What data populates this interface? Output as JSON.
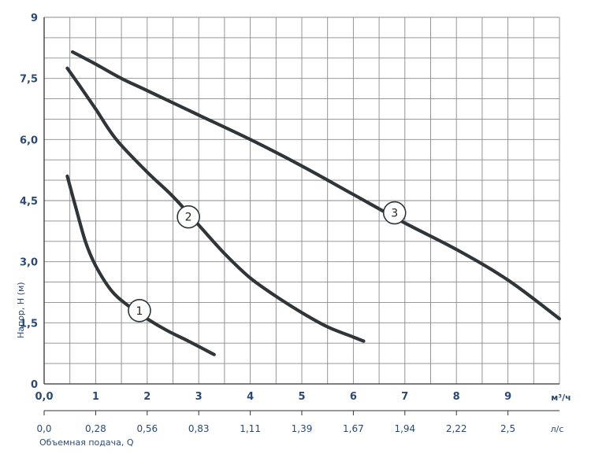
{
  "chart_data": {
    "type": "line",
    "ylabel": "Напор, H (м)",
    "xlabel": "Объемная подача, Q",
    "x_unit": "м³/ч",
    "x2_unit": "л/с",
    "xlim": [
      0,
      10
    ],
    "ylim": [
      0,
      9
    ],
    "grid": true,
    "y_ticks": [
      "0",
      "1,5",
      "3,0",
      "4,5",
      "6,0",
      "7,5",
      "9"
    ],
    "y_tick_values": [
      0,
      1.5,
      3,
      4.5,
      6,
      7.5,
      9
    ],
    "x_ticks": [
      "0,0",
      "1",
      "2",
      "3",
      "4",
      "5",
      "6",
      "7",
      "8",
      "9"
    ],
    "x_tick_values": [
      0,
      1,
      2,
      3,
      4,
      5,
      6,
      7,
      8,
      9
    ],
    "x2_ticks": [
      "0,0",
      "0,28",
      "0,56",
      "0,83",
      "1,11",
      "1,39",
      "1,67",
      "1,94",
      "2,22",
      "2,5"
    ],
    "series": [
      {
        "name": "1",
        "label_at": [
          1.85,
          1.8
        ],
        "points": [
          [
            0.45,
            5.1
          ],
          [
            0.6,
            4.4
          ],
          [
            0.8,
            3.5
          ],
          [
            1.0,
            2.9
          ],
          [
            1.3,
            2.3
          ],
          [
            1.6,
            1.95
          ],
          [
            2.0,
            1.6
          ],
          [
            2.4,
            1.3
          ],
          [
            2.8,
            1.05
          ],
          [
            3.3,
            0.72
          ]
        ]
      },
      {
        "name": "2",
        "label_at": [
          2.8,
          4.1
        ],
        "points": [
          [
            0.45,
            7.75
          ],
          [
            0.7,
            7.3
          ],
          [
            1.0,
            6.75
          ],
          [
            1.4,
            6.0
          ],
          [
            2.0,
            5.2
          ],
          [
            2.5,
            4.6
          ],
          [
            3.0,
            3.9
          ],
          [
            3.5,
            3.2
          ],
          [
            4.0,
            2.6
          ],
          [
            4.5,
            2.15
          ],
          [
            5.0,
            1.75
          ],
          [
            5.5,
            1.4
          ],
          [
            6.0,
            1.15
          ],
          [
            6.2,
            1.05
          ]
        ]
      },
      {
        "name": "3",
        "label_at": [
          6.8,
          4.2
        ],
        "points": [
          [
            0.55,
            8.15
          ],
          [
            1.0,
            7.85
          ],
          [
            1.5,
            7.5
          ],
          [
            2.0,
            7.2
          ],
          [
            3.0,
            6.6
          ],
          [
            4.0,
            6.0
          ],
          [
            5.0,
            5.35
          ],
          [
            6.0,
            4.65
          ],
          [
            7.0,
            3.95
          ],
          [
            8.0,
            3.3
          ],
          [
            9.0,
            2.55
          ],
          [
            10.0,
            1.6
          ]
        ]
      }
    ]
  }
}
